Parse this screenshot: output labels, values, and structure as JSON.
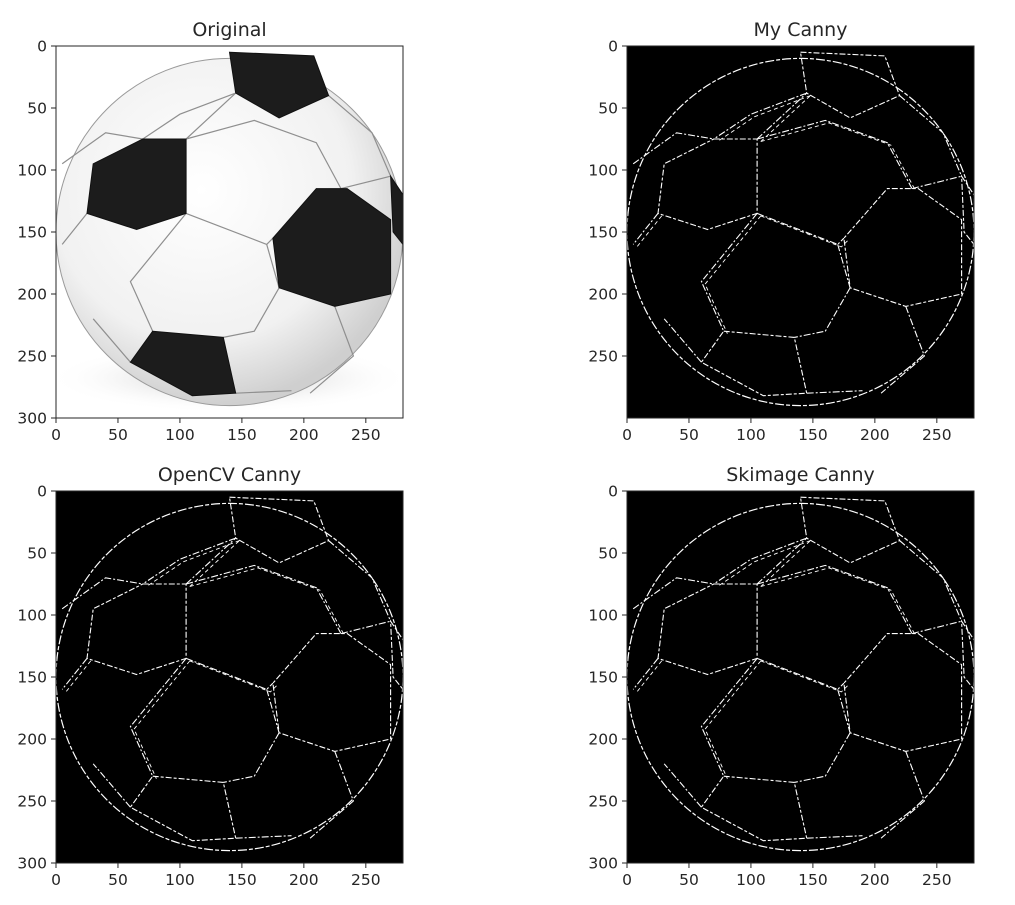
{
  "figure": {
    "background": "#ffffff",
    "axis_color": "#262626",
    "image_background": "#000000",
    "edge_color": "#ffffff"
  },
  "chart_data": [
    {
      "type": "image",
      "title": "Original",
      "xlim": [
        0,
        280
      ],
      "ylim": [
        300,
        0
      ],
      "xticks": [
        "0",
        "50",
        "100",
        "150",
        "200",
        "250"
      ],
      "yticks": [
        "0",
        "50",
        "100",
        "150",
        "200",
        "250",
        "300"
      ],
      "content": "soccer-ball-photo"
    },
    {
      "type": "image",
      "title": "My Canny",
      "xlim": [
        0,
        280
      ],
      "ylim": [
        300,
        0
      ],
      "xticks": [
        "0",
        "50",
        "100",
        "150",
        "200",
        "250"
      ],
      "yticks": [
        "0",
        "50",
        "100",
        "150",
        "200",
        "250"
      ],
      "content": "edge-map"
    },
    {
      "type": "image",
      "title": "OpenCV Canny",
      "xlim": [
        0,
        280
      ],
      "ylim": [
        300,
        0
      ],
      "xticks": [
        "0",
        "50",
        "100",
        "150",
        "200",
        "250"
      ],
      "yticks": [
        "0",
        "50",
        "100",
        "150",
        "200",
        "250",
        "300"
      ],
      "content": "edge-map"
    },
    {
      "type": "image",
      "title": "Skimage Canny",
      "xlim": [
        0,
        280
      ],
      "ylim": [
        300,
        0
      ],
      "xticks": [
        "0",
        "50",
        "100",
        "150",
        "200",
        "250"
      ],
      "yticks": [
        "0",
        "50",
        "100",
        "150",
        "200",
        "250",
        "300"
      ],
      "content": "edge-map"
    }
  ]
}
